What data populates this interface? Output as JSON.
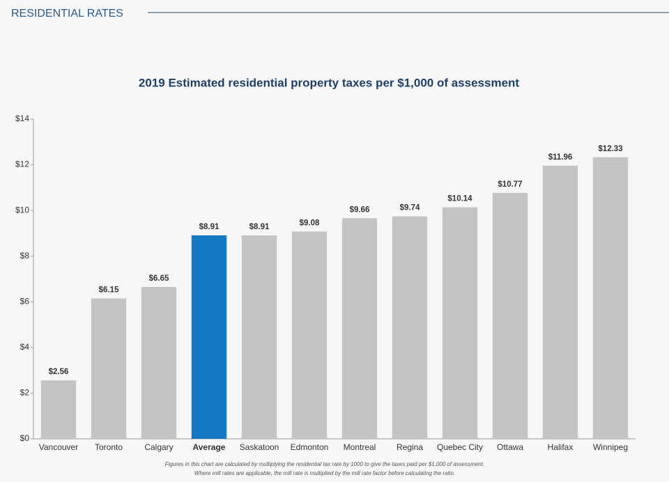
{
  "header": "RESIDENTIAL RATES",
  "chart_data": {
    "type": "bar",
    "title": "2019 Estimated residential property taxes per $1,000 of assessment",
    "categories": [
      "Vancouver",
      "Toronto",
      "Calgary",
      "Average",
      "Saskatoon",
      "Edmonton",
      "Montreal",
      "Regina",
      "Quebec City",
      "Ottawa",
      "Halifax",
      "Winnipeg"
    ],
    "values": [
      2.56,
      6.15,
      6.65,
      8.91,
      8.91,
      9.08,
      9.66,
      9.74,
      10.14,
      10.77,
      11.96,
      12.33
    ],
    "value_labels": [
      "$2.56",
      "$6.15",
      "$6.65",
      "$8.91",
      "$8.91",
      "$9.08",
      "$9.66",
      "$9.74",
      "$10.14",
      "$10.77",
      "$11.96",
      "$12.33"
    ],
    "colors": [
      "#c4c4c4",
      "#c4c4c4",
      "#c4c4c4",
      "#1578c2",
      "#c4c4c4",
      "#c4c4c4",
      "#c4c4c4",
      "#c4c4c4",
      "#c4c4c4",
      "#c4c4c4",
      "#c4c4c4",
      "#c4c4c4"
    ],
    "ylim": [
      0,
      14
    ],
    "yticks": [
      {
        "value": 0,
        "label": "$0"
      },
      {
        "value": 2,
        "label": "$2"
      },
      {
        "value": 4,
        "label": "$4"
      },
      {
        "value": 6,
        "label": "$6"
      },
      {
        "value": 8,
        "label": "$8"
      },
      {
        "value": 10,
        "label": "$10"
      },
      {
        "value": 12,
        "label": "$12"
      },
      {
        "value": 14,
        "label": "$14"
      }
    ],
    "grid": false,
    "footnote": [
      "Figures in this chart are calculated by multiplying the residential tax rate by 1000 to give the taxes paid per $1,000 of assessment.",
      "Where mill rates are applicable, the mill rate is multiplied by the mill rate factor before calculating the ratio."
    ]
  }
}
